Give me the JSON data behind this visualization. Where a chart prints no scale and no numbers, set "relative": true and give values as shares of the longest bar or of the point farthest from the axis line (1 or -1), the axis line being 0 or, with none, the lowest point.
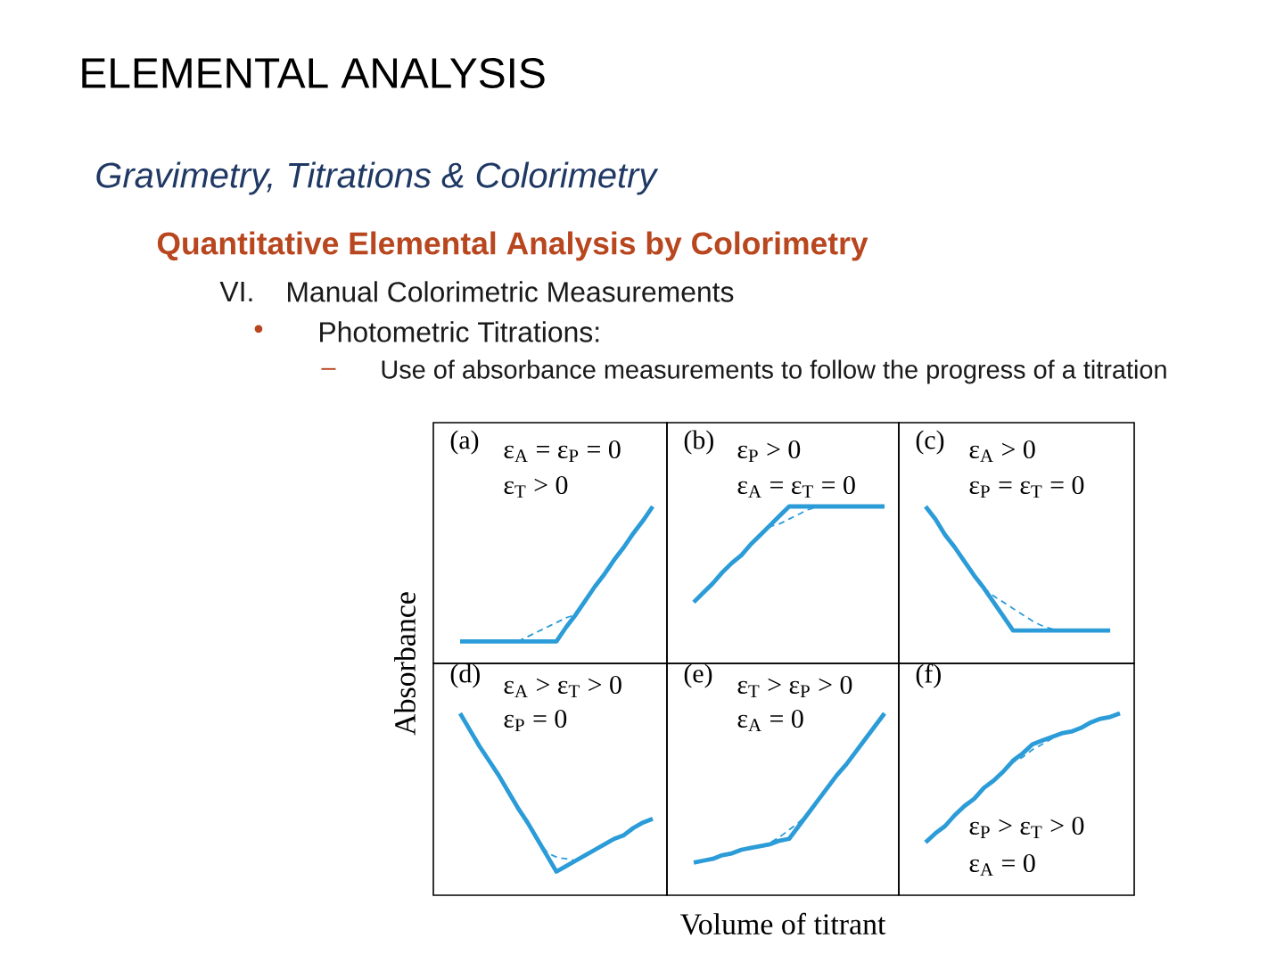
{
  "chart_data": [
    {
      "type": "other",
      "title": "ELEMENTAL ANALYSIS",
      "subtitle": "Gravimetry, Titrations & Colorimetry",
      "annotations": [
        "Quantitative Elemental Analysis by Colorimetry",
        "VI.",
        "Manual Colorimetric Measurements",
        "•",
        "Photometric Titrations:",
        "–",
        "Use of absorbance measurements to follow the progress of a titration"
      ]
    },
    {
      "type": "line",
      "title": "(a)",
      "annotations": [
        "ε$_{A}$ = ε$_{P}$ = 0",
        "ε$_{T}$ > 0"
      ],
      "ylabel": "Absorbance",
      "relative": true,
      "categories": [
        null,
        null,
        null,
        null,
        null,
        null,
        null,
        null,
        null,
        null,
        null,
        null,
        null,
        null,
        null,
        null,
        null,
        null,
        null,
        null,
        null
      ],
      "series": [
        {
          "color": "#2b9cd8",
          "values": [
            0.14,
            0.14,
            0.14,
            0.14,
            0.14,
            0.14,
            0.14,
            0.14,
            0.14,
            0.14,
            0.14,
            0.23,
            0.31,
            0.4,
            0.49,
            0.57,
            0.66,
            0.74,
            0.83,
            0.91,
            1
          ]
        },
        {
          "color": "#2b9cd8",
          "line_style": "dashed",
          "values": [
            null,
            null,
            null,
            null,
            null,
            null,
            0.14,
            0.17,
            0.2,
            0.23,
            0.26,
            0.29,
            0.31,
            null,
            null,
            null,
            null,
            null,
            null,
            null,
            null
          ]
        }
      ]
    },
    {
      "type": "line",
      "title": "(b)",
      "annotations": [
        "ε$_{P}$ > 0",
        "ε$_{A}$ = ε$_{T}$ = 0"
      ],
      "relative": true,
      "categories": [
        null,
        null,
        null,
        null,
        null,
        null,
        null,
        null,
        null,
        null,
        null,
        null,
        null,
        null,
        null,
        null,
        null,
        null,
        null,
        null,
        null
      ],
      "series": [
        {
          "color": "#2b9cd8",
          "values": [
            0.39,
            0.45,
            0.51,
            0.58,
            0.64,
            0.69,
            0.76,
            0.82,
            0.88,
            0.94,
            1,
            1,
            1,
            1,
            1,
            1,
            1,
            1,
            1,
            1,
            1
          ]
        },
        {
          "color": "#2b9cd8",
          "line_style": "dashed",
          "values": [
            null,
            null,
            null,
            null,
            null,
            null,
            null,
            0.82,
            0.87,
            0.89,
            0.92,
            0.95,
            0.98,
            1,
            null,
            null,
            null,
            null,
            null,
            null,
            null
          ]
        }
      ]
    },
    {
      "type": "line",
      "title": "(c)",
      "annotations": [
        "ε$_{A}$ > 0",
        "ε$_{P}$ = ε$_{T}$ = 0"
      ],
      "relative": true,
      "categories": [
        null,
        null,
        null,
        null,
        null,
        null,
        null,
        null,
        null,
        null,
        null,
        null,
        null,
        null,
        null,
        null,
        null,
        null,
        null,
        null,
        null
      ],
      "series": [
        {
          "color": "#2b9cd8",
          "values": [
            1,
            0.92,
            0.82,
            0.74,
            0.65,
            0.56,
            0.48,
            0.39,
            0.3,
            0.21,
            0.21,
            0.21,
            0.21,
            0.21,
            0.21,
            0.21,
            0.21,
            0.21,
            0.21,
            0.21,
            null
          ]
        },
        {
          "color": "#2b9cd8",
          "line_style": "dashed",
          "values": [
            null,
            null,
            null,
            null,
            null,
            null,
            0.48,
            0.43,
            0.39,
            0.35,
            0.31,
            0.27,
            0.24,
            0.22,
            0.21,
            null,
            null,
            null,
            null,
            null,
            null
          ]
        }
      ]
    },
    {
      "type": "line",
      "title": "(d)",
      "annotations": [
        "ε$_{A}$ > ε$_{T}$ > 0",
        "ε$_{P}$ = 0"
      ],
      "relative": true,
      "categories": [
        null,
        null,
        null,
        null,
        null,
        null,
        null,
        null,
        null,
        null,
        null,
        null,
        null,
        null,
        null,
        null,
        null,
        null,
        null,
        null,
        null
      ],
      "series": [
        {
          "color": "#2b9cd8",
          "values": [
            1,
            0.91,
            0.82,
            0.74,
            0.66,
            0.57,
            0.48,
            0.4,
            0.31,
            0.22,
            0.13,
            0.16,
            0.19,
            0.22,
            0.25,
            0.28,
            0.31,
            0.33,
            0.37,
            0.4,
            0.42
          ]
        },
        {
          "color": "#2b9cd8",
          "line_style": "dashed",
          "values": [
            null,
            null,
            null,
            null,
            null,
            null,
            null,
            null,
            0.31,
            0.24,
            0.21,
            0.2,
            0.19,
            null,
            null,
            null,
            null,
            null,
            null,
            null,
            null
          ]
        }
      ]
    },
    {
      "type": "line",
      "title": "(e)",
      "annotations": [
        "ε$_{T}$ > ε$_{P}$ > 0",
        "ε$_{A}$ = 0"
      ],
      "xlabel": "Volume of titrant",
      "relative": true,
      "categories": [
        null,
        null,
        null,
        null,
        null,
        null,
        null,
        null,
        null,
        null,
        null,
        null,
        null,
        null,
        null,
        null,
        null,
        null,
        null,
        null,
        null
      ],
      "series": [
        {
          "color": "#2b9cd8",
          "values": [
            0.18,
            0.19,
            0.2,
            0.22,
            0.23,
            0.25,
            0.26,
            0.27,
            0.28,
            0.3,
            0.31,
            0.38,
            0.45,
            0.52,
            0.59,
            0.66,
            0.72,
            0.79,
            0.86,
            0.93,
            1
          ]
        },
        {
          "color": "#2b9cd8",
          "line_style": "dashed",
          "values": [
            null,
            null,
            null,
            null,
            null,
            null,
            0.26,
            0.27,
            0.29,
            0.32,
            0.36,
            0.4,
            0.45,
            null,
            null,
            null,
            null,
            null,
            null,
            null,
            null
          ]
        }
      ]
    },
    {
      "type": "line",
      "title": "(f)",
      "annotations": [
        "ε$_{P}$ > ε$_{T}$ > 0",
        "ε$_{A}$ = 0"
      ],
      "relative": true,
      "categories": [
        null,
        null,
        null,
        null,
        null,
        null,
        null,
        null,
        null,
        null,
        null,
        null,
        null,
        null,
        null,
        null,
        null,
        null,
        null,
        null,
        null
      ],
      "series": [
        {
          "color": "#2b9cd8",
          "values": [
            0.29,
            0.34,
            0.38,
            0.44,
            0.49,
            0.53,
            0.59,
            0.63,
            0.68,
            0.74,
            0.78,
            0.83,
            0.85,
            0.87,
            0.89,
            0.9,
            0.92,
            0.95,
            0.97,
            0.98,
            1
          ]
        },
        {
          "color": "#2b9cd8",
          "line_style": "dashed",
          "values": [
            null,
            null,
            null,
            null,
            null,
            null,
            null,
            null,
            0.68,
            0.73,
            0.76,
            0.8,
            0.83,
            0.86,
            0.89,
            0.9,
            null,
            null,
            null,
            null,
            null
          ]
        }
      ]
    }
  ]
}
